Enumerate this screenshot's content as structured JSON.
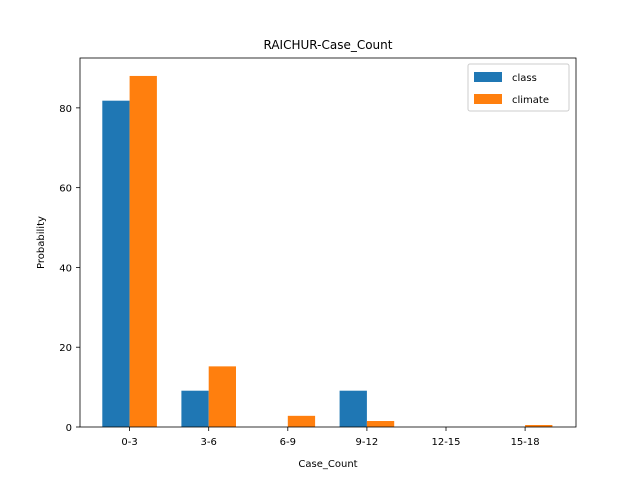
{
  "chart_data": {
    "type": "bar",
    "title": "RAICHUR-Case_Count",
    "xlabel": "Case_Count",
    "ylabel": "Probability",
    "categories": [
      "0-3",
      "3-6",
      "6-9",
      "9-12",
      "12-15",
      "15-18"
    ],
    "series": [
      {
        "name": "class",
        "color": "#1f77b4",
        "values": [
          81.8,
          9.1,
          0,
          9.1,
          0,
          0
        ]
      },
      {
        "name": "climate",
        "color": "#ff7f0e",
        "values": [
          88.0,
          15.2,
          2.8,
          1.5,
          0,
          0.5
        ]
      }
    ],
    "ylim": [
      0,
      92.5
    ],
    "yticks": [
      0,
      20,
      40,
      60,
      80
    ],
    "legend": "top-right",
    "grid": false
  }
}
